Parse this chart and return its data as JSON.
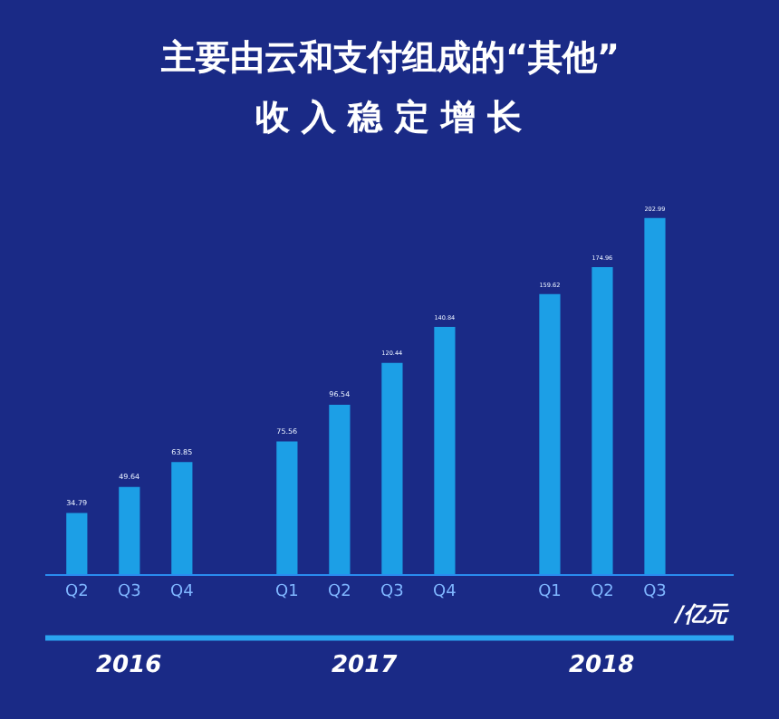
{
  "chart_data": {
    "type": "bar",
    "title": "主要由云和支付组成的“其他”",
    "subtitle": "收 入 稳 定 增 长",
    "xlabel": "/亿元",
    "categories": [
      "Q2",
      "Q3",
      "Q4",
      null,
      "Q1",
      "Q2",
      "Q3",
      "Q4",
      null,
      "Q1",
      "Q2",
      "Q3"
    ],
    "values": [
      34.79,
      49.64,
      63.85,
      null,
      75.56,
      96.54,
      120.44,
      140.84,
      null,
      159.62,
      174.96,
      202.99
    ],
    "color": "#1c9fe6",
    "data_labels": true,
    "grid": false,
    "legend": false,
    "annotations": [
      "2016",
      "2017",
      "2018"
    ]
  }
}
